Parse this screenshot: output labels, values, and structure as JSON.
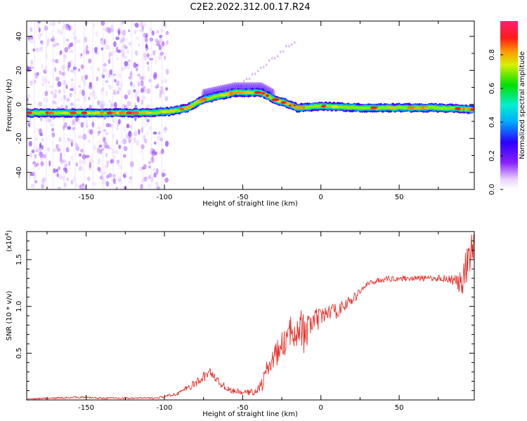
{
  "figure": {
    "title": "C2E2.2022.312.00.17.R24"
  },
  "colors": {
    "snr_line": "#e8302a",
    "axis": "#000000",
    "background": "#ffffff"
  },
  "chart_data": [
    {
      "type": "heatmap",
      "title": "C2E2.2022.312.00.17.R24",
      "xlabel": "Height of straight line (km)",
      "ylabel": "Frequency (Hz)",
      "xlim": [
        -188,
        98
      ],
      "ylim": [
        -50,
        49
      ],
      "x_ticks": [
        -150,
        -100,
        -50,
        0,
        50
      ],
      "y_ticks": [
        -40,
        -20,
        0,
        20,
        40
      ],
      "colorbar": {
        "label": "Normalized spectral amplitude",
        "range": [
          0,
          1
        ],
        "ticks": [
          "0.0",
          "0.2",
          "0.4",
          "0.6",
          "0.8"
        ],
        "colormap": "rainbow (white → purple → blue → cyan → green → yellow → orange → red → magenta)"
      },
      "ridge": {
        "description_points_x": [
          -188,
          -150,
          -110,
          -95,
          -85,
          -75,
          -65,
          -55,
          -45,
          -38,
          -30,
          -20,
          -15,
          0,
          25,
          50,
          75,
          98
        ],
        "description_points_y": [
          -5,
          -5,
          -5,
          -4,
          -2,
          3,
          5,
          7,
          7,
          7,
          3,
          0,
          -2,
          -1,
          -2,
          -2,
          -2,
          -3
        ]
      },
      "grid": false,
      "legend": "none"
    },
    {
      "type": "line",
      "xlabel": "Height of straight line (km)",
      "ylabel": "SNR (10 * v/v)",
      "y_multiplier_label": "(x10",
      "y_multiplier_exp": "4",
      "xlim": [
        -188,
        98
      ],
      "ylim": [
        0,
        1.8
      ],
      "x_ticks": [
        -150,
        -100,
        -50,
        0,
        50
      ],
      "y_ticks": [
        "0.5",
        "1.0",
        "1.5"
      ],
      "series": [
        {
          "x": [
            -188,
            -170,
            -155,
            -140,
            -120,
            -105,
            -95,
            -88,
            -82,
            -78,
            -74,
            -70,
            -66,
            -62,
            -58,
            -54,
            -50,
            -46,
            -42,
            -38,
            -34,
            -30,
            -26,
            -22,
            -18,
            -14,
            -12,
            -10,
            -6,
            -2,
            2,
            6,
            10,
            14,
            18,
            22,
            26,
            30,
            35,
            40,
            50,
            60,
            70,
            80,
            85,
            88,
            90,
            92,
            94,
            96,
            98
          ],
          "y": [
            0.01,
            0.02,
            0.03,
            0.02,
            0.02,
            0.02,
            0.05,
            0.1,
            0.16,
            0.2,
            0.26,
            0.3,
            0.2,
            0.15,
            0.1,
            0.09,
            0.08,
            0.08,
            0.09,
            0.15,
            0.35,
            0.45,
            0.55,
            0.65,
            0.75,
            0.8,
            0.75,
            0.65,
            0.85,
            0.85,
            0.9,
            0.95,
            0.95,
            1.0,
            1.05,
            1.1,
            1.18,
            1.24,
            1.27,
            1.29,
            1.3,
            1.3,
            1.3,
            1.3,
            1.28,
            1.25,
            1.2,
            1.3,
            1.45,
            1.6,
            1.7
          ],
          "noise": [
            0.005,
            0.01,
            0.01,
            0.01,
            0.01,
            0.01,
            0.02,
            0.03,
            0.04,
            0.05,
            0.06,
            0.05,
            0.04,
            0.04,
            0.03,
            0.03,
            0.03,
            0.03,
            0.04,
            0.08,
            0.1,
            0.12,
            0.14,
            0.16,
            0.18,
            0.22,
            0.25,
            0.2,
            0.15,
            0.12,
            0.1,
            0.08,
            0.08,
            0.07,
            0.06,
            0.05,
            0.04,
            0.03,
            0.03,
            0.03,
            0.03,
            0.03,
            0.03,
            0.04,
            0.06,
            0.1,
            0.2,
            0.25,
            0.25,
            0.2,
            0.15
          ]
        }
      ],
      "grid": false,
      "legend": "none"
    }
  ]
}
